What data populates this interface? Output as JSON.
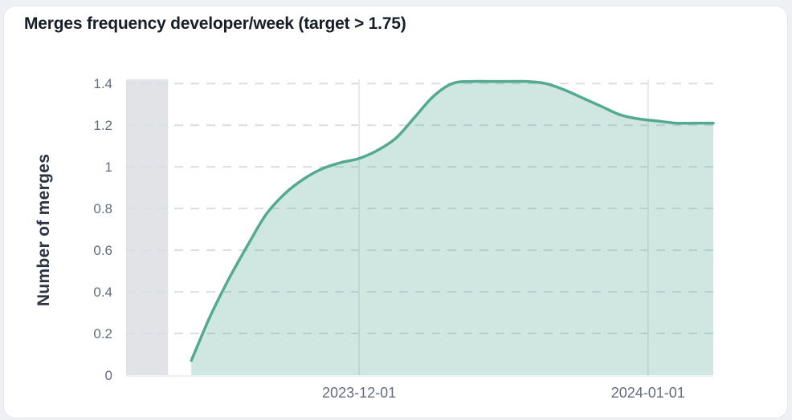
{
  "title": "Merges frequency developer/week (target > 1.75)",
  "chart_data": {
    "type": "area",
    "title": "Merges frequency developer/week (target > 1.75)",
    "xlabel": "",
    "ylabel": "Number of merges",
    "ylim": [
      0,
      1.42
    ],
    "x_range": [
      "2023-11-06",
      "2024-01-08"
    ],
    "grid": true,
    "legend": false,
    "y_ticks": [
      {
        "value": 0,
        "label": "0"
      },
      {
        "value": 0.2,
        "label": "0.2"
      },
      {
        "value": 0.4,
        "label": "0.4"
      },
      {
        "value": 0.6,
        "label": "0.6"
      },
      {
        "value": 0.8,
        "label": "0.8"
      },
      {
        "value": 1,
        "label": "1"
      },
      {
        "value": 1.2,
        "label": "1.2"
      },
      {
        "value": 1.4,
        "label": "1.4"
      }
    ],
    "x_ticks": [
      {
        "date": "2023-12-01",
        "label": "2023-12-01"
      },
      {
        "date": "2024-01-01",
        "label": "2024-01-01"
      }
    ],
    "no_data_band": {
      "from": "2023-11-06",
      "to": "2023-11-10T12:00:00Z"
    },
    "series": [
      {
        "points": [
          [
            "2023-11-13",
            0.07
          ],
          [
            "2023-11-15",
            0.28
          ],
          [
            "2023-11-17",
            0.46
          ],
          [
            "2023-11-19",
            0.62
          ],
          [
            "2023-11-21",
            0.77
          ],
          [
            "2023-11-23",
            0.87
          ],
          [
            "2023-11-25",
            0.94
          ],
          [
            "2023-11-27",
            0.99
          ],
          [
            "2023-11-29",
            1.02
          ],
          [
            "2023-12-01",
            1.04
          ],
          [
            "2023-12-03",
            1.08
          ],
          [
            "2023-12-05",
            1.14
          ],
          [
            "2023-12-07",
            1.24
          ],
          [
            "2023-12-09",
            1.34
          ],
          [
            "2023-12-11",
            1.4
          ],
          [
            "2023-12-13",
            1.41
          ],
          [
            "2023-12-15",
            1.41
          ],
          [
            "2023-12-17",
            1.41
          ],
          [
            "2023-12-19",
            1.41
          ],
          [
            "2023-12-21",
            1.4
          ],
          [
            "2023-12-23",
            1.37
          ],
          [
            "2023-12-25",
            1.33
          ],
          [
            "2023-12-27",
            1.29
          ],
          [
            "2023-12-29",
            1.25
          ],
          [
            "2023-12-31",
            1.23
          ],
          [
            "2024-01-02",
            1.22
          ],
          [
            "2024-01-04",
            1.21
          ],
          [
            "2024-01-06",
            1.21
          ],
          [
            "2024-01-08",
            1.21
          ]
        ]
      }
    ]
  },
  "colors": {
    "line": "#53aa8e",
    "fill": "rgba(83,170,142,0.28)",
    "band": "#e1e3e6",
    "grid_dash": "#d9dee6",
    "grid_vertical": "#e5e8ec",
    "axis_line": "#e9ebef",
    "tick_label": "#626d7d",
    "axis_title": "#2b3442",
    "title": "#171e2a",
    "card_bg": "#ffffff",
    "page_bg": "#eef0f3"
  }
}
